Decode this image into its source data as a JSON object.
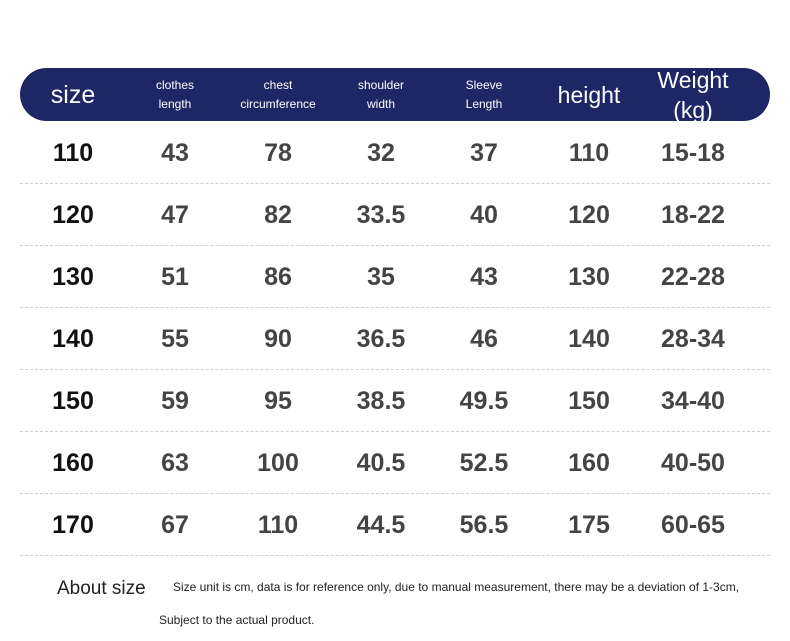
{
  "table": {
    "header": [
      [
        "size"
      ],
      [
        "clothes",
        "length"
      ],
      [
        "chest",
        "circumference"
      ],
      [
        "shoulder",
        "width"
      ],
      [
        "Sleeve",
        "Length"
      ],
      [
        "height"
      ],
      [
        "Weight (kg)"
      ]
    ],
    "rows": [
      [
        "110",
        "43",
        "78",
        "32",
        "37",
        "110",
        "15-18"
      ],
      [
        "120",
        "47",
        "82",
        "33.5",
        "40",
        "120",
        "18-22"
      ],
      [
        "130",
        "51",
        "86",
        "35",
        "43",
        "130",
        "22-28"
      ],
      [
        "140",
        "55",
        "90",
        "36.5",
        "46",
        "140",
        "28-34"
      ],
      [
        "150",
        "59",
        "95",
        "38.5",
        "49.5",
        "150",
        "34-40"
      ],
      [
        "160",
        "63",
        "100",
        "40.5",
        "52.5",
        "160",
        "40-50"
      ],
      [
        "170",
        "67",
        "110",
        "44.5",
        "56.5",
        "175",
        "60-65"
      ]
    ]
  },
  "footer": {
    "title": "About size",
    "note": [
      "Size unit is cm, data is for reference only, due to manual measurement, there may be a deviation of 1-3cm,",
      "Subject to the actual product."
    ]
  }
}
